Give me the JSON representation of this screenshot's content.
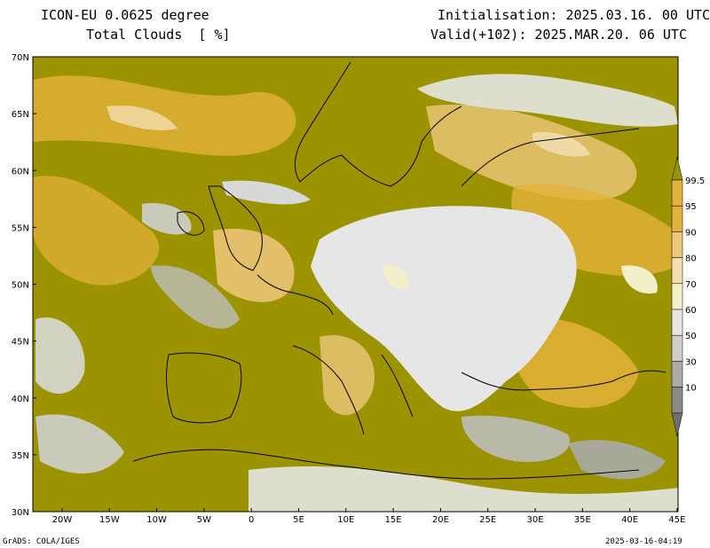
{
  "header": {
    "model": "ICON-EU 0.0625 degree",
    "variable": "Total Clouds  [ %]",
    "init": "Initialisation: 2025.03.16. 00 UTC",
    "valid": "Valid(+102): 2025.MAR.20. 06 UTC"
  },
  "axes": {
    "lon_labels": [
      "20W",
      "15W",
      "10W",
      "5W",
      "0",
      "5E",
      "10E",
      "15E",
      "20E",
      "25E",
      "30E",
      "35E",
      "40E",
      "45E"
    ],
    "lat_labels": [
      "70N",
      "65N",
      "60N",
      "55N",
      "50N",
      "45N",
      "40N",
      "35N",
      "30N"
    ]
  },
  "legend": {
    "levels": [
      {
        "label": "99.5",
        "color": "#9b9400"
      },
      {
        "label": "95",
        "color": "#e3b23a"
      },
      {
        "label": "90",
        "color": "#eec77a"
      },
      {
        "label": "80",
        "color": "#f2deb0"
      },
      {
        "label": "70",
        "color": "#f3efcb"
      },
      {
        "label": "60",
        "color": "#e6e6e6"
      },
      {
        "label": "50",
        "color": "#cfcfcf"
      },
      {
        "label": "30",
        "color": "#ababab"
      },
      {
        "label": "10",
        "color": "#8a8a8a"
      }
    ],
    "bottom_color": "#6e6e6e"
  },
  "footer": {
    "left": "GrADS: COLA/IGES",
    "right": "2025-03-16-04:19"
  }
}
